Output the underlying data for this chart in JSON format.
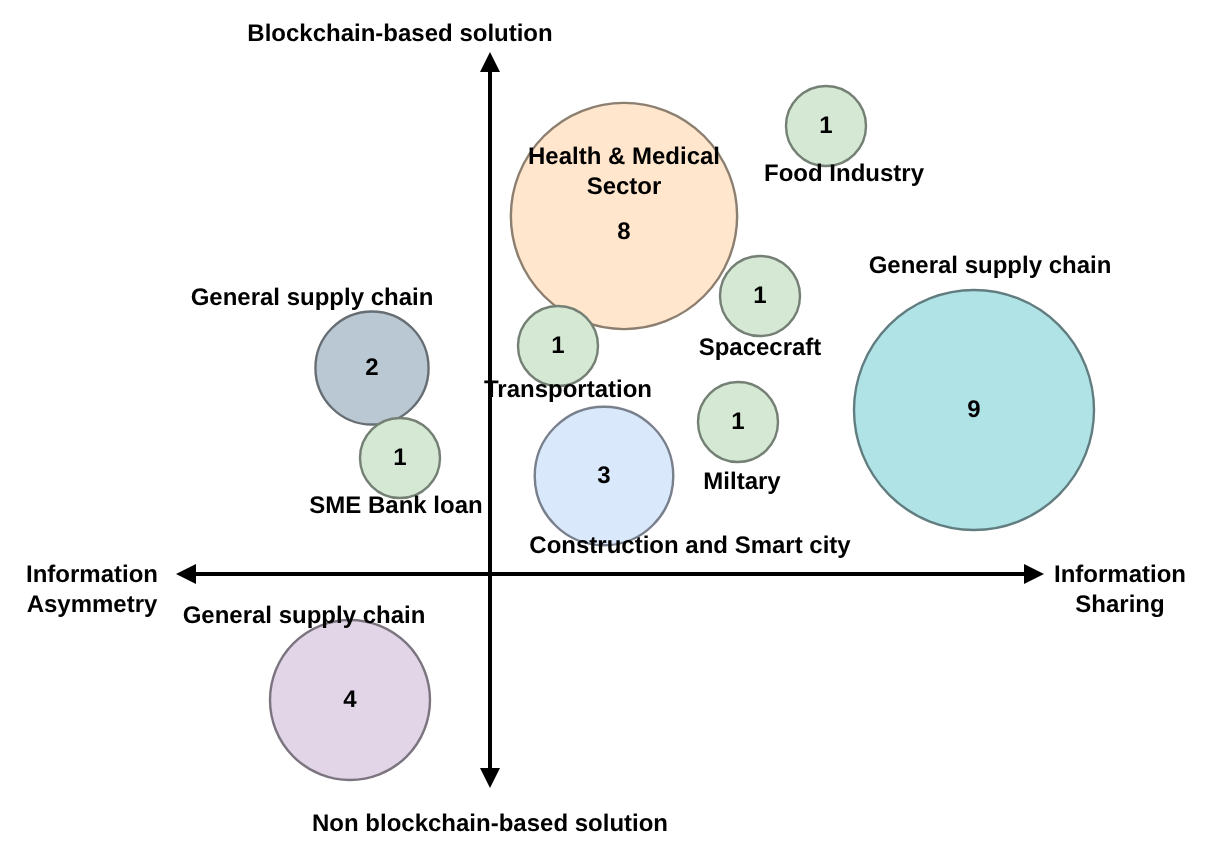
{
  "chart_data": {
    "type": "other",
    "data_labels": true,
    "annotations": [
      "Information Asymmetry",
      "Information Sharing",
      "Blockchain-based solution",
      "Non blockchain-based solution"
    ],
    "categories": [
      "Health & Medical Sector",
      "Food Industry",
      "Spacecraft",
      "Transportation",
      "Miltary",
      "Construction and Smart city",
      "General supply chain",
      "General supply chain",
      "SME Bank loan",
      "General supply chain"
    ],
    "values": [
      8,
      1,
      1,
      1,
      1,
      3,
      9,
      2,
      1,
      4
    ],
    "colors": [
      "#ffe6cc",
      "#d5e8d4",
      "#d5e8d4",
      "#d5e8d4",
      "#d5e8d4",
      "#dae8fc",
      "#b0e3e6",
      "#bac8d3",
      "#d5e8d4",
      "#e1d5e7"
    ]
  }
}
